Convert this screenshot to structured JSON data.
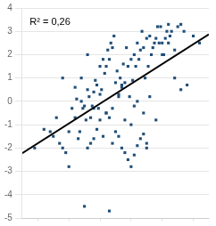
{
  "chart_data": {
    "type": "scatter",
    "annotation": "R² = 0,26",
    "series": [
      {
        "type": "scatter",
        "color": "#1F4E79",
        "marker": "square",
        "x": [
          -2.1,
          -1.8,
          -1.6,
          -1.5,
          -1.4,
          -1.3,
          -1.2,
          -1.1,
          -1.0,
          -0.9,
          -0.8,
          -0.75,
          -0.7,
          -0.65,
          -0.6,
          -0.55,
          -0.5,
          -0.45,
          -0.4,
          -0.35,
          -0.3,
          -0.25,
          -0.2,
          -0.15,
          -0.1,
          -0.05,
          0.0,
          0.05,
          0.1,
          0.15,
          0.2,
          0.25,
          0.3,
          0.35,
          0.4,
          0.45,
          0.5,
          0.55,
          0.6,
          0.65,
          0.7,
          0.75,
          0.8,
          0.85,
          0.9,
          0.95,
          1.0,
          1.05,
          1.1,
          1.15,
          1.2,
          1.25,
          1.3,
          1.35,
          1.4,
          1.45,
          1.5,
          1.55,
          1.6,
          1.65,
          1.7,
          1.75,
          1.8,
          1.85,
          1.9,
          1.95,
          2.0,
          2.05,
          2.1,
          2.15,
          2.2,
          2.25,
          2.3,
          2.4,
          2.5,
          2.6,
          2.7,
          2.8,
          3.0,
          3.2,
          -0.4,
          -0.3,
          -0.2,
          -0.1,
          0.0,
          0.1,
          0.2,
          0.3,
          0.4,
          0.5,
          0.6,
          0.7,
          0.8,
          0.9,
          1.0,
          1.1,
          1.2,
          1.3,
          1.4,
          1.5,
          -1.2,
          -1.0,
          -0.8,
          -0.6,
          -0.4,
          -0.2,
          0.0,
          0.2,
          0.4,
          0.6,
          0.8,
          1.0,
          1.2,
          1.4,
          1.6,
          1.8,
          2.0,
          2.2,
          2.4,
          2.6,
          -0.5,
          0.3,
          0.7,
          1.1,
          1.5
        ],
        "values": [
          -2.0,
          -1.2,
          -1.3,
          -1.5,
          -0.7,
          -1.8,
          -2.0,
          -2.2,
          -1.3,
          -0.3,
          -0.7,
          0.1,
          -1.6,
          -1.3,
          0.0,
          -0.3,
          -0.2,
          -0.8,
          0.5,
          0.2,
          -0.7,
          -0.2,
          0.4,
          0.9,
          0.7,
          -0.3,
          1.5,
          0.5,
          1.8,
          1.2,
          1.5,
          2.2,
          1.8,
          2.5,
          2.3,
          2.8,
          0.8,
          1.3,
          0.3,
          1.0,
          0.6,
          1.6,
          0.8,
          2.3,
          1.5,
          0.2,
          1.8,
          0.9,
          2.0,
          1.5,
          2.5,
          1.8,
          2.2,
          3.0,
          2.3,
          1.0,
          2.7,
          1.5,
          2.8,
          2.0,
          2.3,
          2.5,
          2.7,
          3.2,
          2.5,
          3.2,
          2.5,
          2.0,
          2.7,
          3.0,
          3.3,
          2.8,
          3.0,
          2.2,
          3.2,
          3.3,
          3.0,
          0.7,
          2.8,
          2.5,
          -2.0,
          -1.8,
          -1.6,
          -1.2,
          -0.8,
          -1.5,
          -0.5,
          -0.7,
          -1.8,
          -1.3,
          -1.5,
          -2.0,
          -2.2,
          -2.5,
          -2.8,
          -2.3,
          -1.9,
          -1.6,
          -1.4,
          -2.0,
          1.0,
          -2.8,
          0.6,
          1.0,
          2.0,
          -0.3,
          0.3,
          -0.5,
          -0.3,
          0.2,
          -0.8,
          -1.0,
          0.0,
          -0.5,
          0.2,
          -0.8,
          2.0,
          2.5,
          1.0,
          0.5,
          -4.5,
          -4.7,
          0.7,
          -0.2,
          -1.8
        ]
      },
      {
        "type": "line",
        "color": "#000000",
        "line_style": "solid",
        "x": [
          -2.5,
          3.5
        ],
        "values": [
          -2.225,
          2.875
        ]
      }
    ],
    "xlim": [
      -2.5,
      3.5
    ],
    "xticks": [
      -2,
      -1,
      0,
      1,
      2,
      3
    ],
    "ylim": [
      -5,
      4
    ],
    "yticks": [
      -5,
      -4,
      -3,
      -2,
      -1,
      0,
      1,
      2,
      3,
      4
    ],
    "tick_labels": "y",
    "grid": "y"
  }
}
